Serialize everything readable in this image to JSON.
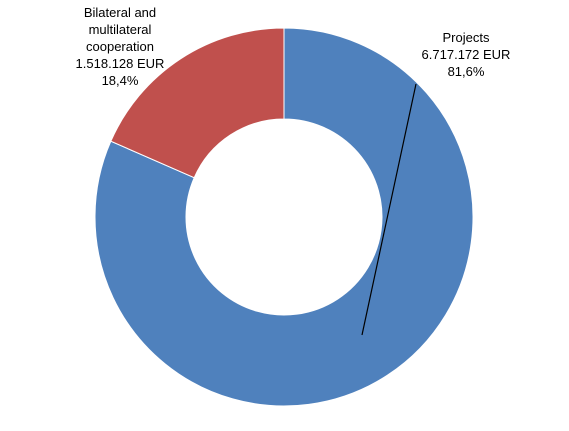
{
  "chart_data": {
    "type": "pie",
    "variant": "doughnut",
    "slices": [
      {
        "name": "Projects",
        "value": 6717172,
        "value_label": "6.717.172 EUR",
        "percent_label": "81,6%",
        "percent": 81.6,
        "color": "#4F81BD"
      },
      {
        "name_lines": [
          "Bilateral and",
          "multilateral",
          "cooperation"
        ],
        "value": 1518128,
        "value_label": "1.518.128 EUR",
        "percent_label": "18,4%",
        "percent": 18.4,
        "color": "#C0504D"
      }
    ],
    "legend": "none"
  }
}
